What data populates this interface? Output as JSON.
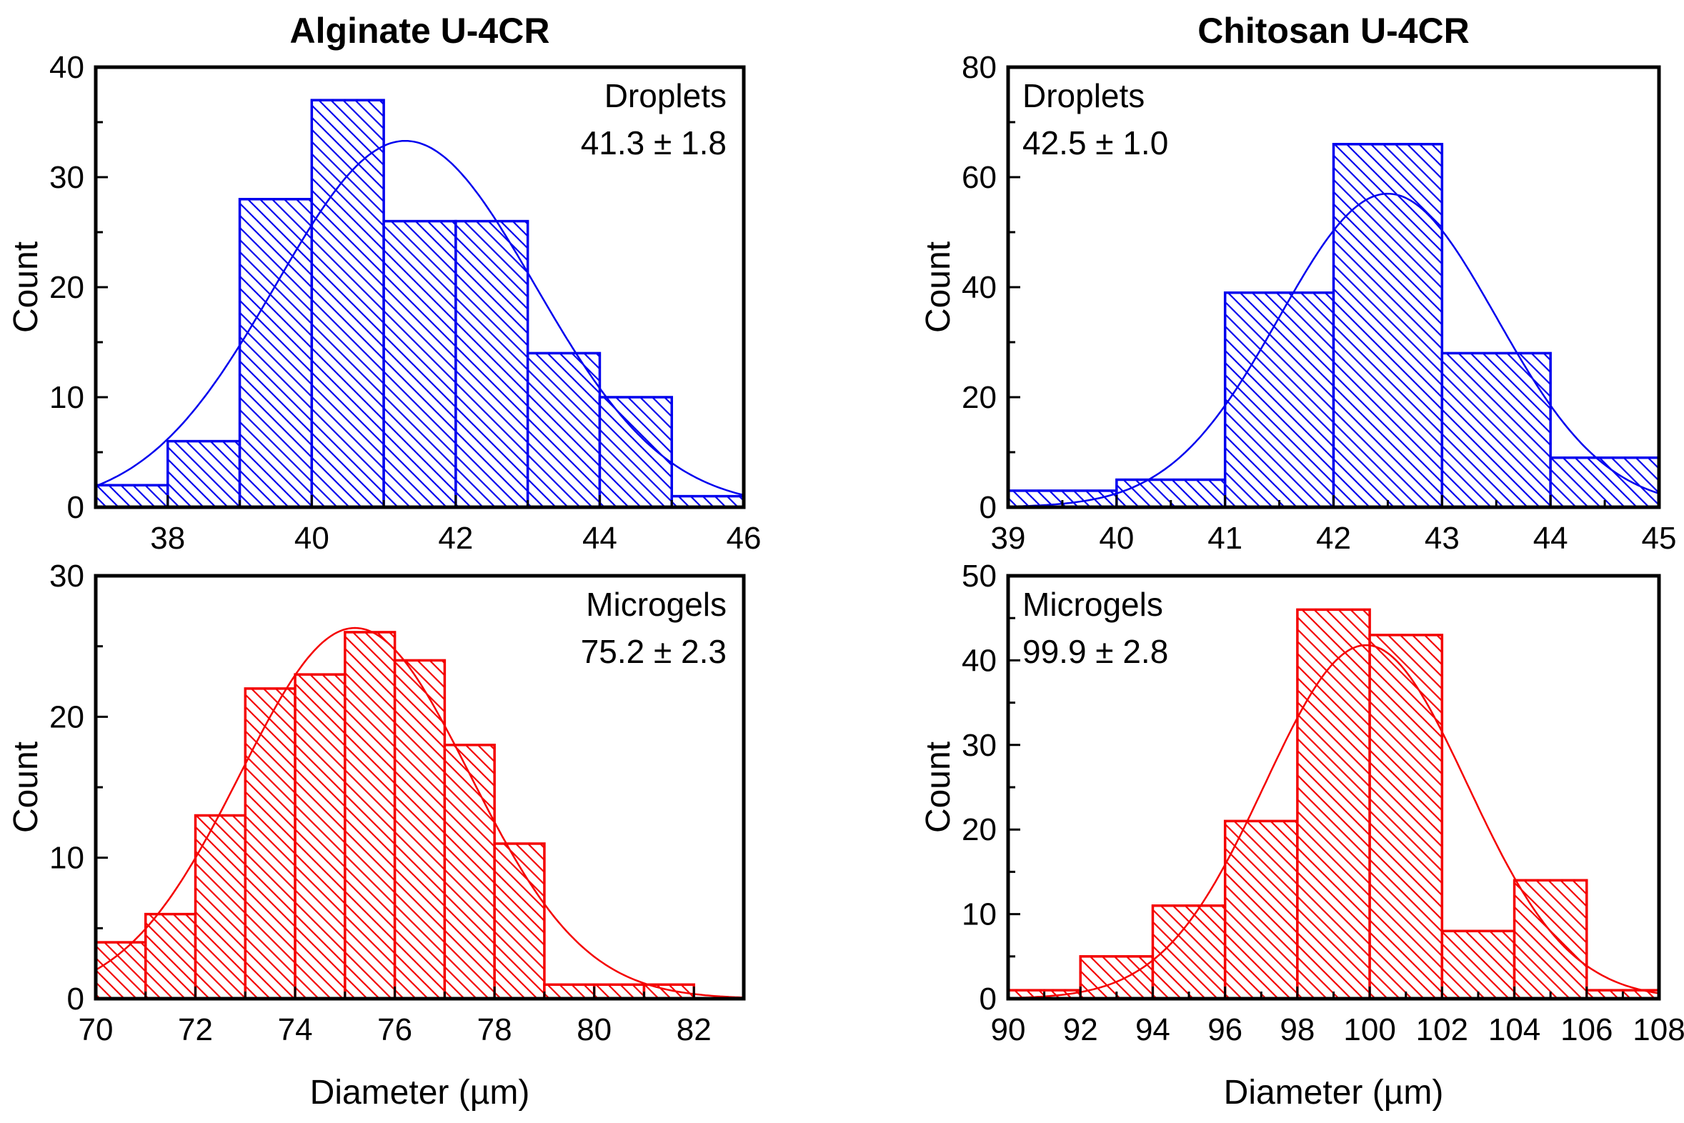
{
  "figure": {
    "background": "#ffffff"
  },
  "shared": {
    "ylabel": "Count",
    "xlabel": "Diameter (µm)",
    "axis_color": "#000000",
    "droplet_color": "#0000ee",
    "microgel_color": "#f40000"
  },
  "chart_data": [
    {
      "id": "alginate-droplets",
      "type": "bar",
      "title": "Alginate U-4CR",
      "annotation": {
        "line1": "Droplets",
        "line2": "41.3 ± 1.8",
        "align": "right"
      },
      "color": "#0000ee",
      "xlabel": "",
      "ylabel": "Count",
      "xlim": [
        37,
        46
      ],
      "ylim": [
        0,
        40
      ],
      "x_major_ticks": [
        38,
        40,
        42,
        44,
        46
      ],
      "x_minor_ticks": [
        39,
        41,
        43,
        45
      ],
      "y_major_ticks": [
        0,
        10,
        20,
        30,
        40
      ],
      "y_minor_ticks": [
        5,
        15,
        25,
        35
      ],
      "bin_start": 37,
      "bin_width": 1,
      "categories": [
        "37-38",
        "38-39",
        "39-40",
        "40-41",
        "41-42",
        "42-43",
        "43-44",
        "44-45",
        "45-46"
      ],
      "values": [
        2,
        6,
        28,
        37,
        26,
        26,
        14,
        10,
        1
      ],
      "fit": {
        "type": "gauss",
        "mean": 41.3,
        "sd": 1.8,
        "peak": 33.3
      },
      "grid": false,
      "legend": "none",
      "show_xlabel": false
    },
    {
      "id": "chitosan-droplets",
      "type": "bar",
      "title": "Chitosan U-4CR",
      "annotation": {
        "line1": "Droplets",
        "line2": "42.5 ± 1.0",
        "align": "left"
      },
      "color": "#0000ee",
      "xlabel": "",
      "ylabel": "Count",
      "xlim": [
        39,
        45
      ],
      "ylim": [
        0,
        80
      ],
      "x_major_ticks": [
        39,
        40,
        41,
        42,
        43,
        44,
        45
      ],
      "x_minor_ticks": [
        39.5,
        40.5,
        41.5,
        42.5,
        43.5,
        44.5
      ],
      "y_major_ticks": [
        0,
        20,
        40,
        60,
        80
      ],
      "y_minor_ticks": [
        10,
        30,
        50,
        70
      ],
      "bin_start": 39,
      "bin_width": 1,
      "categories": [
        "39-40",
        "40-41",
        "41-42",
        "42-43",
        "43-44",
        "44-45"
      ],
      "values": [
        3,
        5,
        39,
        66,
        28,
        9
      ],
      "fit": {
        "type": "gauss",
        "mean": 42.5,
        "sd": 1.0,
        "peak": 57.0
      },
      "grid": false,
      "legend": "none",
      "show_xlabel": false
    },
    {
      "id": "alginate-microgels",
      "type": "bar",
      "title": "",
      "annotation": {
        "line1": "Microgels",
        "line2": "75.2 ± 2.3",
        "align": "right"
      },
      "color": "#f40000",
      "xlabel": "Diameter (µm)",
      "ylabel": "Count",
      "xlim": [
        70,
        83
      ],
      "ylim": [
        0,
        30
      ],
      "x_major_ticks": [
        70,
        72,
        74,
        76,
        78,
        80,
        82
      ],
      "x_minor_ticks": [
        71,
        73,
        75,
        77,
        79,
        81,
        83
      ],
      "y_major_ticks": [
        0,
        10,
        20,
        30
      ],
      "y_minor_ticks": [
        5,
        15,
        25
      ],
      "bin_start": 70,
      "bin_width": 1,
      "categories": [
        "70-71",
        "71-72",
        "72-73",
        "73-74",
        "74-75",
        "75-76",
        "76-77",
        "77-78",
        "78-79",
        "79-80",
        "80-81",
        "81-82"
      ],
      "values": [
        4,
        6,
        13,
        22,
        23,
        26,
        24,
        18,
        11,
        1,
        1,
        1
      ],
      "fit": {
        "type": "gauss",
        "mean": 75.2,
        "sd": 2.3,
        "peak": 26.3
      },
      "grid": false,
      "legend": "none",
      "show_xlabel": true
    },
    {
      "id": "chitosan-microgels",
      "type": "bar",
      "title": "",
      "annotation": {
        "line1": "Microgels",
        "line2": "99.9 ± 2.8",
        "align": "left"
      },
      "color": "#f40000",
      "xlabel": "Diameter (µm)",
      "ylabel": "Count",
      "xlim": [
        90,
        108
      ],
      "ylim": [
        0,
        50
      ],
      "x_major_ticks": [
        90,
        92,
        94,
        96,
        98,
        100,
        102,
        104,
        106,
        108
      ],
      "x_minor_ticks": [
        91,
        93,
        95,
        97,
        99,
        101,
        103,
        105,
        107
      ],
      "y_major_ticks": [
        0,
        10,
        20,
        30,
        40,
        50
      ],
      "y_minor_ticks": [
        5,
        15,
        25,
        35,
        45
      ],
      "bin_start": 90,
      "bin_width": 2,
      "categories": [
        "90-92",
        "92-94",
        "94-96",
        "96-98",
        "98-100",
        "100-102",
        "102-104",
        "104-106",
        "106-108"
      ],
      "values": [
        1,
        5,
        11,
        21,
        46,
        43,
        8,
        14,
        1
      ],
      "fit": {
        "type": "gauss",
        "mean": 99.9,
        "sd": 2.8,
        "peak": 41.8
      },
      "grid": false,
      "legend": "none",
      "show_xlabel": true
    }
  ]
}
